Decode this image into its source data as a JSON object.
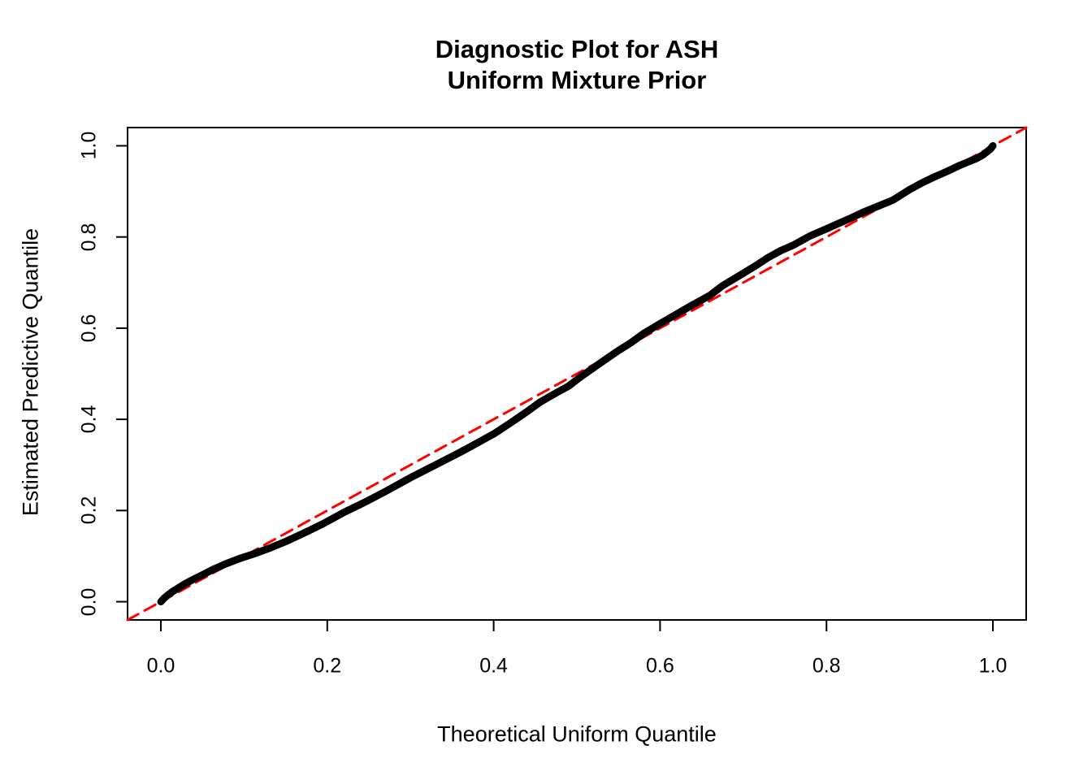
{
  "chart_data": {
    "type": "line",
    "title_line1": "Diagnostic Plot for ASH",
    "title_line2": "Uniform Mixture Prior",
    "xlabel": "Theoretical Uniform Quantile",
    "ylabel": "Estimated Predictive Quantile",
    "xlim": [
      -0.04,
      1.04
    ],
    "ylim": [
      -0.04,
      1.04
    ],
    "grid": false,
    "legend": "none",
    "x_ticks": [
      0.0,
      0.2,
      0.4,
      0.6,
      0.8,
      1.0
    ],
    "y_ticks": [
      0.0,
      0.2,
      0.4,
      0.6,
      0.8,
      1.0
    ],
    "x_tick_labels": [
      "0.0",
      "0.2",
      "0.4",
      "0.6",
      "0.8",
      "1.0"
    ],
    "y_tick_labels": [
      "0.0",
      "0.2",
      "0.4",
      "0.6",
      "0.8",
      "1.0"
    ],
    "series": [
      {
        "name": "estimated-vs-theoretical-quantile-curve",
        "style": "thick-point-curve",
        "color": "#000000",
        "line_width": 9,
        "points": [
          [
            0.0,
            0.0
          ],
          [
            0.004,
            0.008
          ],
          [
            0.008,
            0.014
          ],
          [
            0.013,
            0.021
          ],
          [
            0.02,
            0.029
          ],
          [
            0.028,
            0.038
          ],
          [
            0.038,
            0.048
          ],
          [
            0.05,
            0.059
          ],
          [
            0.063,
            0.071
          ],
          [
            0.078,
            0.083
          ],
          [
            0.095,
            0.095
          ],
          [
            0.112,
            0.105
          ],
          [
            0.13,
            0.117
          ],
          [
            0.15,
            0.132
          ],
          [
            0.17,
            0.149
          ],
          [
            0.195,
            0.171
          ],
          [
            0.22,
            0.196
          ],
          [
            0.245,
            0.218
          ],
          [
            0.27,
            0.242
          ],
          [
            0.3,
            0.272
          ],
          [
            0.33,
            0.3
          ],
          [
            0.36,
            0.328
          ],
          [
            0.382,
            0.35
          ],
          [
            0.4,
            0.368
          ],
          [
            0.42,
            0.392
          ],
          [
            0.44,
            0.417
          ],
          [
            0.456,
            0.438
          ],
          [
            0.475,
            0.458
          ],
          [
            0.49,
            0.473
          ],
          [
            0.505,
            0.494
          ],
          [
            0.52,
            0.513
          ],
          [
            0.535,
            0.532
          ],
          [
            0.55,
            0.551
          ],
          [
            0.565,
            0.568
          ],
          [
            0.58,
            0.588
          ],
          [
            0.6,
            0.61
          ],
          [
            0.62,
            0.631
          ],
          [
            0.64,
            0.652
          ],
          [
            0.66,
            0.672
          ],
          [
            0.675,
            0.693
          ],
          [
            0.695,
            0.715
          ],
          [
            0.715,
            0.737
          ],
          [
            0.73,
            0.755
          ],
          [
            0.745,
            0.77
          ],
          [
            0.76,
            0.782
          ],
          [
            0.78,
            0.802
          ],
          [
            0.8,
            0.818
          ],
          [
            0.815,
            0.83
          ],
          [
            0.83,
            0.842
          ],
          [
            0.845,
            0.855
          ],
          [
            0.86,
            0.866
          ],
          [
            0.88,
            0.881
          ],
          [
            0.9,
            0.904
          ],
          [
            0.915,
            0.919
          ],
          [
            0.93,
            0.932
          ],
          [
            0.945,
            0.944
          ],
          [
            0.96,
            0.957
          ],
          [
            0.972,
            0.966
          ],
          [
            0.98,
            0.972
          ],
          [
            0.988,
            0.98
          ],
          [
            0.993,
            0.987
          ],
          [
            0.997,
            0.993
          ],
          [
            1.0,
            1.0
          ]
        ]
      },
      {
        "name": "identity-reference-line",
        "style": "dashed-line",
        "color": "#FF0000",
        "line_width": 3,
        "dash": [
          15,
          9
        ],
        "points": [
          [
            -0.04,
            -0.04
          ],
          [
            1.04,
            1.04
          ]
        ]
      }
    ]
  },
  "colors": {
    "curve": "#000000",
    "reference_line": "#FF0000",
    "background": "#FFFFFF",
    "text": "#000000"
  }
}
